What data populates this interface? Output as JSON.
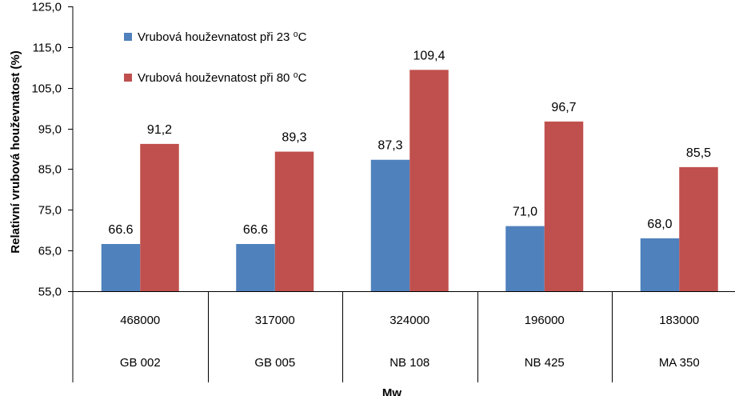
{
  "chart_data": {
    "type": "bar",
    "title": "",
    "xlabel": "Mw",
    "ylabel": "Relativní vrubová houževnatost (%)",
    "ylim": [
      55,
      125
    ],
    "yticks": [
      "55,0",
      "65,0",
      "75,0",
      "85,0",
      "95,0",
      "105,0",
      "115,0",
      "125,0"
    ],
    "ytick_values": [
      55,
      65,
      75,
      85,
      95,
      105,
      115,
      125
    ],
    "grid": false,
    "legend_position": "top-left",
    "categories": [
      "468000",
      "317000",
      "324000",
      "196000",
      "183000"
    ],
    "category_groups": [
      "GB 002",
      "GB 005",
      "NB 108",
      "NB 425",
      "MA 350"
    ],
    "series": [
      {
        "name": "Vrubová houževnatost při 23 ⁰C",
        "color": "#4f81bd",
        "values": [
          66.6,
          66.6,
          87.3,
          71.0,
          68.0
        ],
        "labels": [
          "66.6",
          "66.6",
          "87,3",
          "71,0",
          "68,0"
        ]
      },
      {
        "name": "Vrubová houževnatost při 80 ⁰C",
        "color": "#c0504d",
        "values": [
          91.2,
          89.3,
          109.4,
          96.7,
          85.5
        ],
        "labels": [
          "91,2",
          "89,3",
          "109,4",
          "96,7",
          "85,5"
        ]
      }
    ]
  }
}
